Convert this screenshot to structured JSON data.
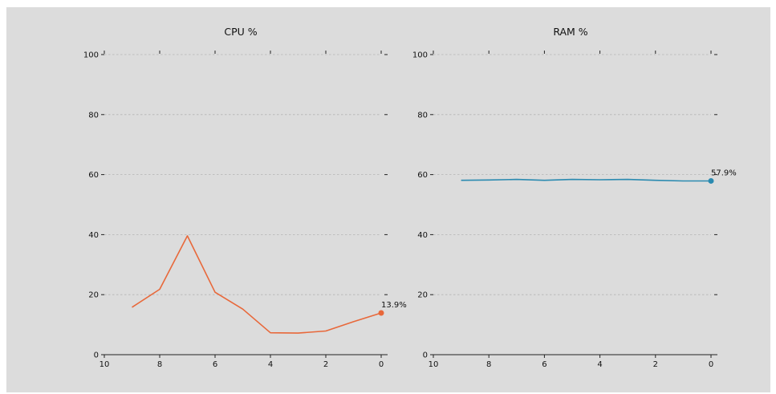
{
  "chart_data": [
    {
      "type": "line",
      "title": "CPU %",
      "xlabel": "",
      "ylabel": "",
      "x": [
        9,
        8,
        7,
        6,
        5,
        4,
        3,
        2,
        1,
        0
      ],
      "values": [
        15.8,
        21.8,
        39.6,
        20.8,
        15.2,
        7.3,
        7.2,
        7.9,
        11.0,
        13.9
      ],
      "xlim": [
        10,
        0
      ],
      "ylim": [
        0,
        100
      ],
      "xticks": [
        10,
        8,
        6,
        4,
        2,
        0
      ],
      "yticks": [
        0,
        20,
        40,
        60,
        80,
        100
      ],
      "grid": true,
      "color": "#e8683a",
      "last_label": "13.9%"
    },
    {
      "type": "line",
      "title": "RAM %",
      "xlabel": "",
      "ylabel": "",
      "x": [
        9,
        8,
        7,
        6,
        5,
        4,
        3,
        2,
        1,
        0
      ],
      "values": [
        58.1,
        58.2,
        58.4,
        58.1,
        58.4,
        58.3,
        58.4,
        58.1,
        57.9,
        57.9
      ],
      "xlim": [
        10,
        0
      ],
      "ylim": [
        0,
        100
      ],
      "xticks": [
        10,
        8,
        6,
        4,
        2,
        0
      ],
      "yticks": [
        0,
        20,
        40,
        60,
        80,
        100
      ],
      "grid": true,
      "color": "#2a8ab0",
      "last_label": "57.9%"
    }
  ]
}
